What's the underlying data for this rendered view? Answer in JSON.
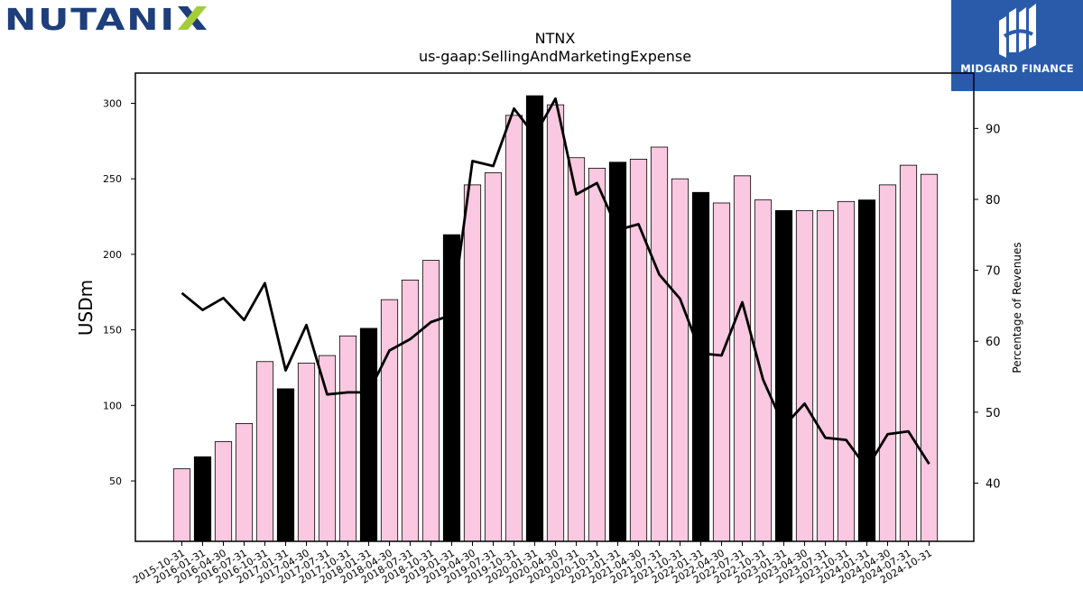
{
  "brand": {
    "company_logo_text": "NUTANIX",
    "publisher_name": "MIDGARD FINANCE"
  },
  "colors": {
    "bar_default": "#fac8e0",
    "bar_highlight": "#000000",
    "line": "#000000",
    "axes": "#000000",
    "nutanix_blue": "#1e3f7c",
    "nutanix_green": "#a3cd39",
    "midgard_bg": "#2a5bab"
  },
  "chart_data": {
    "type": "bar",
    "title": "NTNX",
    "subtitle": "us-gaap:SellingAndMarketingExpense",
    "ylabel": "USDm",
    "y2label": "Percentage of Revenues",
    "ylim": [
      10,
      320
    ],
    "y2lim": [
      31.8,
      97.8
    ],
    "yticks": [
      50,
      100,
      150,
      200,
      250,
      300
    ],
    "y2ticks": [
      40,
      50,
      60,
      70,
      80,
      90
    ],
    "categories": [
      "2015-10-31",
      "2016-01-31",
      "2016-04-30",
      "2016-07-31",
      "2016-10-31",
      "2017-01-31",
      "2017-04-30",
      "2017-07-31",
      "2017-10-31",
      "2018-01-31",
      "2018-04-30",
      "2018-07-31",
      "2018-10-31",
      "2019-01-31",
      "2019-04-30",
      "2019-07-31",
      "2019-10-31",
      "2020-01-31",
      "2020-04-30",
      "2020-07-31",
      "2020-10-31",
      "2021-01-31",
      "2021-04-30",
      "2021-07-31",
      "2021-10-31",
      "2022-01-31",
      "2022-04-30",
      "2022-07-31",
      "2022-10-31",
      "2023-01-31",
      "2023-04-30",
      "2023-07-31",
      "2023-10-31",
      "2024-01-31",
      "2024-04-30",
      "2024-07-31",
      "2024-10-31"
    ],
    "series": [
      {
        "type": "bar",
        "axis": "left",
        "values": [
          58,
          66,
          76,
          88,
          129,
          111,
          128,
          133,
          146,
          151,
          170,
          183,
          196,
          213,
          246,
          254,
          292,
          305,
          299,
          264,
          257,
          261,
          263,
          271,
          250,
          241,
          234,
          252,
          236,
          229,
          229,
          229,
          235,
          236,
          246,
          259,
          253
        ],
        "highlight": [
          false,
          true,
          false,
          false,
          false,
          true,
          false,
          false,
          false,
          true,
          false,
          false,
          false,
          true,
          false,
          false,
          false,
          true,
          false,
          false,
          false,
          true,
          false,
          false,
          false,
          true,
          false,
          false,
          false,
          true,
          false,
          false,
          false,
          true,
          false,
          false,
          false
        ]
      },
      {
        "type": "line",
        "axis": "right",
        "values": [
          66.8,
          64.4,
          66.1,
          63.0,
          68.2,
          55.9,
          62.3,
          52.5,
          52.8,
          52.8,
          58.7,
          60.3,
          62.7,
          63.7,
          85.4,
          84.7,
          92.8,
          89.0,
          94.2,
          80.7,
          82.3,
          75.7,
          76.5,
          69.4,
          66.0,
          58.3,
          58.0,
          65.5,
          54.6,
          48.0,
          51.2,
          46.4,
          46.1,
          42.1,
          46.9,
          47.3,
          42.7
        ]
      }
    ],
    "grid": false,
    "legend": "none"
  }
}
